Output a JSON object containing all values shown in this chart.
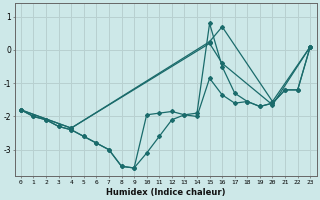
{
  "xlabel": "Humidex (Indice chaleur)",
  "xlim": [
    -0.5,
    23.5
  ],
  "ylim": [
    -3.8,
    1.4
  ],
  "xticks": [
    0,
    1,
    2,
    3,
    4,
    5,
    6,
    7,
    8,
    9,
    10,
    11,
    12,
    13,
    14,
    15,
    16,
    17,
    18,
    19,
    20,
    21,
    22,
    23
  ],
  "yticks": [
    -3,
    -2,
    -1,
    0,
    1
  ],
  "bg_color": "#cde8e8",
  "grid_color": "#b8d0d0",
  "line_color": "#1a6b6b",
  "lines": [
    {
      "x": [
        0,
        1,
        2,
        3,
        4,
        5,
        6,
        7,
        8,
        9,
        10,
        11,
        12,
        13,
        14,
        15,
        16,
        17,
        18,
        19,
        20,
        21,
        22,
        23
      ],
      "y": [
        -1.8,
        -2.0,
        -2.1,
        -2.3,
        -2.4,
        -2.6,
        -2.8,
        -3.0,
        -3.5,
        -3.55,
        -3.1,
        -2.6,
        -2.1,
        -1.95,
        -2.0,
        -0.85,
        -1.35,
        -1.6,
        -1.55,
        -1.7,
        -1.6,
        -1.2,
        -1.2,
        0.1
      ]
    },
    {
      "x": [
        0,
        1,
        2,
        3,
        4,
        5,
        6,
        7,
        8,
        9,
        10,
        11,
        12,
        13,
        14,
        15,
        16,
        17,
        18,
        19,
        20,
        21,
        22,
        23
      ],
      "y": [
        -1.8,
        -2.0,
        -2.1,
        -2.3,
        -2.4,
        -2.6,
        -2.8,
        -3.0,
        -3.5,
        -3.55,
        -1.95,
        -1.9,
        -1.85,
        -1.95,
        -1.9,
        0.8,
        -0.5,
        -1.3,
        -1.55,
        -1.7,
        -1.6,
        -1.2,
        -1.2,
        0.1
      ]
    },
    {
      "x": [
        0,
        4,
        15,
        16,
        20,
        23
      ],
      "y": [
        -1.8,
        -2.35,
        0.2,
        -0.4,
        -1.65,
        0.1
      ]
    },
    {
      "x": [
        0,
        4,
        15,
        16,
        20,
        23
      ],
      "y": [
        -1.8,
        -2.35,
        0.25,
        0.7,
        -1.55,
        0.1
      ]
    }
  ]
}
